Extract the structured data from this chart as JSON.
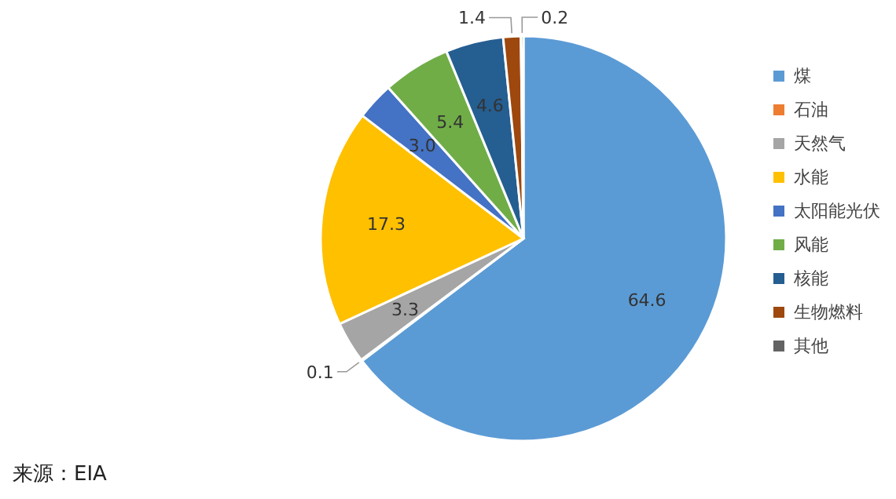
{
  "chart_data": {
    "type": "pie",
    "categories": [
      "煤",
      "石油",
      "天然气",
      "水能",
      "太阳能光伏",
      "风能",
      "核能",
      "生物燃料",
      "其他"
    ],
    "values": [
      64.6,
      0.1,
      3.3,
      17.3,
      3.0,
      5.4,
      4.6,
      1.4,
      0.2
    ],
    "colors": [
      "#5b9bd5",
      "#ed7d31",
      "#a5a5a5",
      "#ffc000",
      "#4472c4",
      "#70ad47",
      "#255e91",
      "#9e480e",
      "#636363"
    ],
    "value_labels": [
      "64.6",
      "0.1",
      "3.3",
      "17.3",
      "3.0",
      "5.4",
      "4.6",
      "1.4",
      "0.2"
    ],
    "legend": "right",
    "annotations": [
      "来源：EIA"
    ]
  }
}
